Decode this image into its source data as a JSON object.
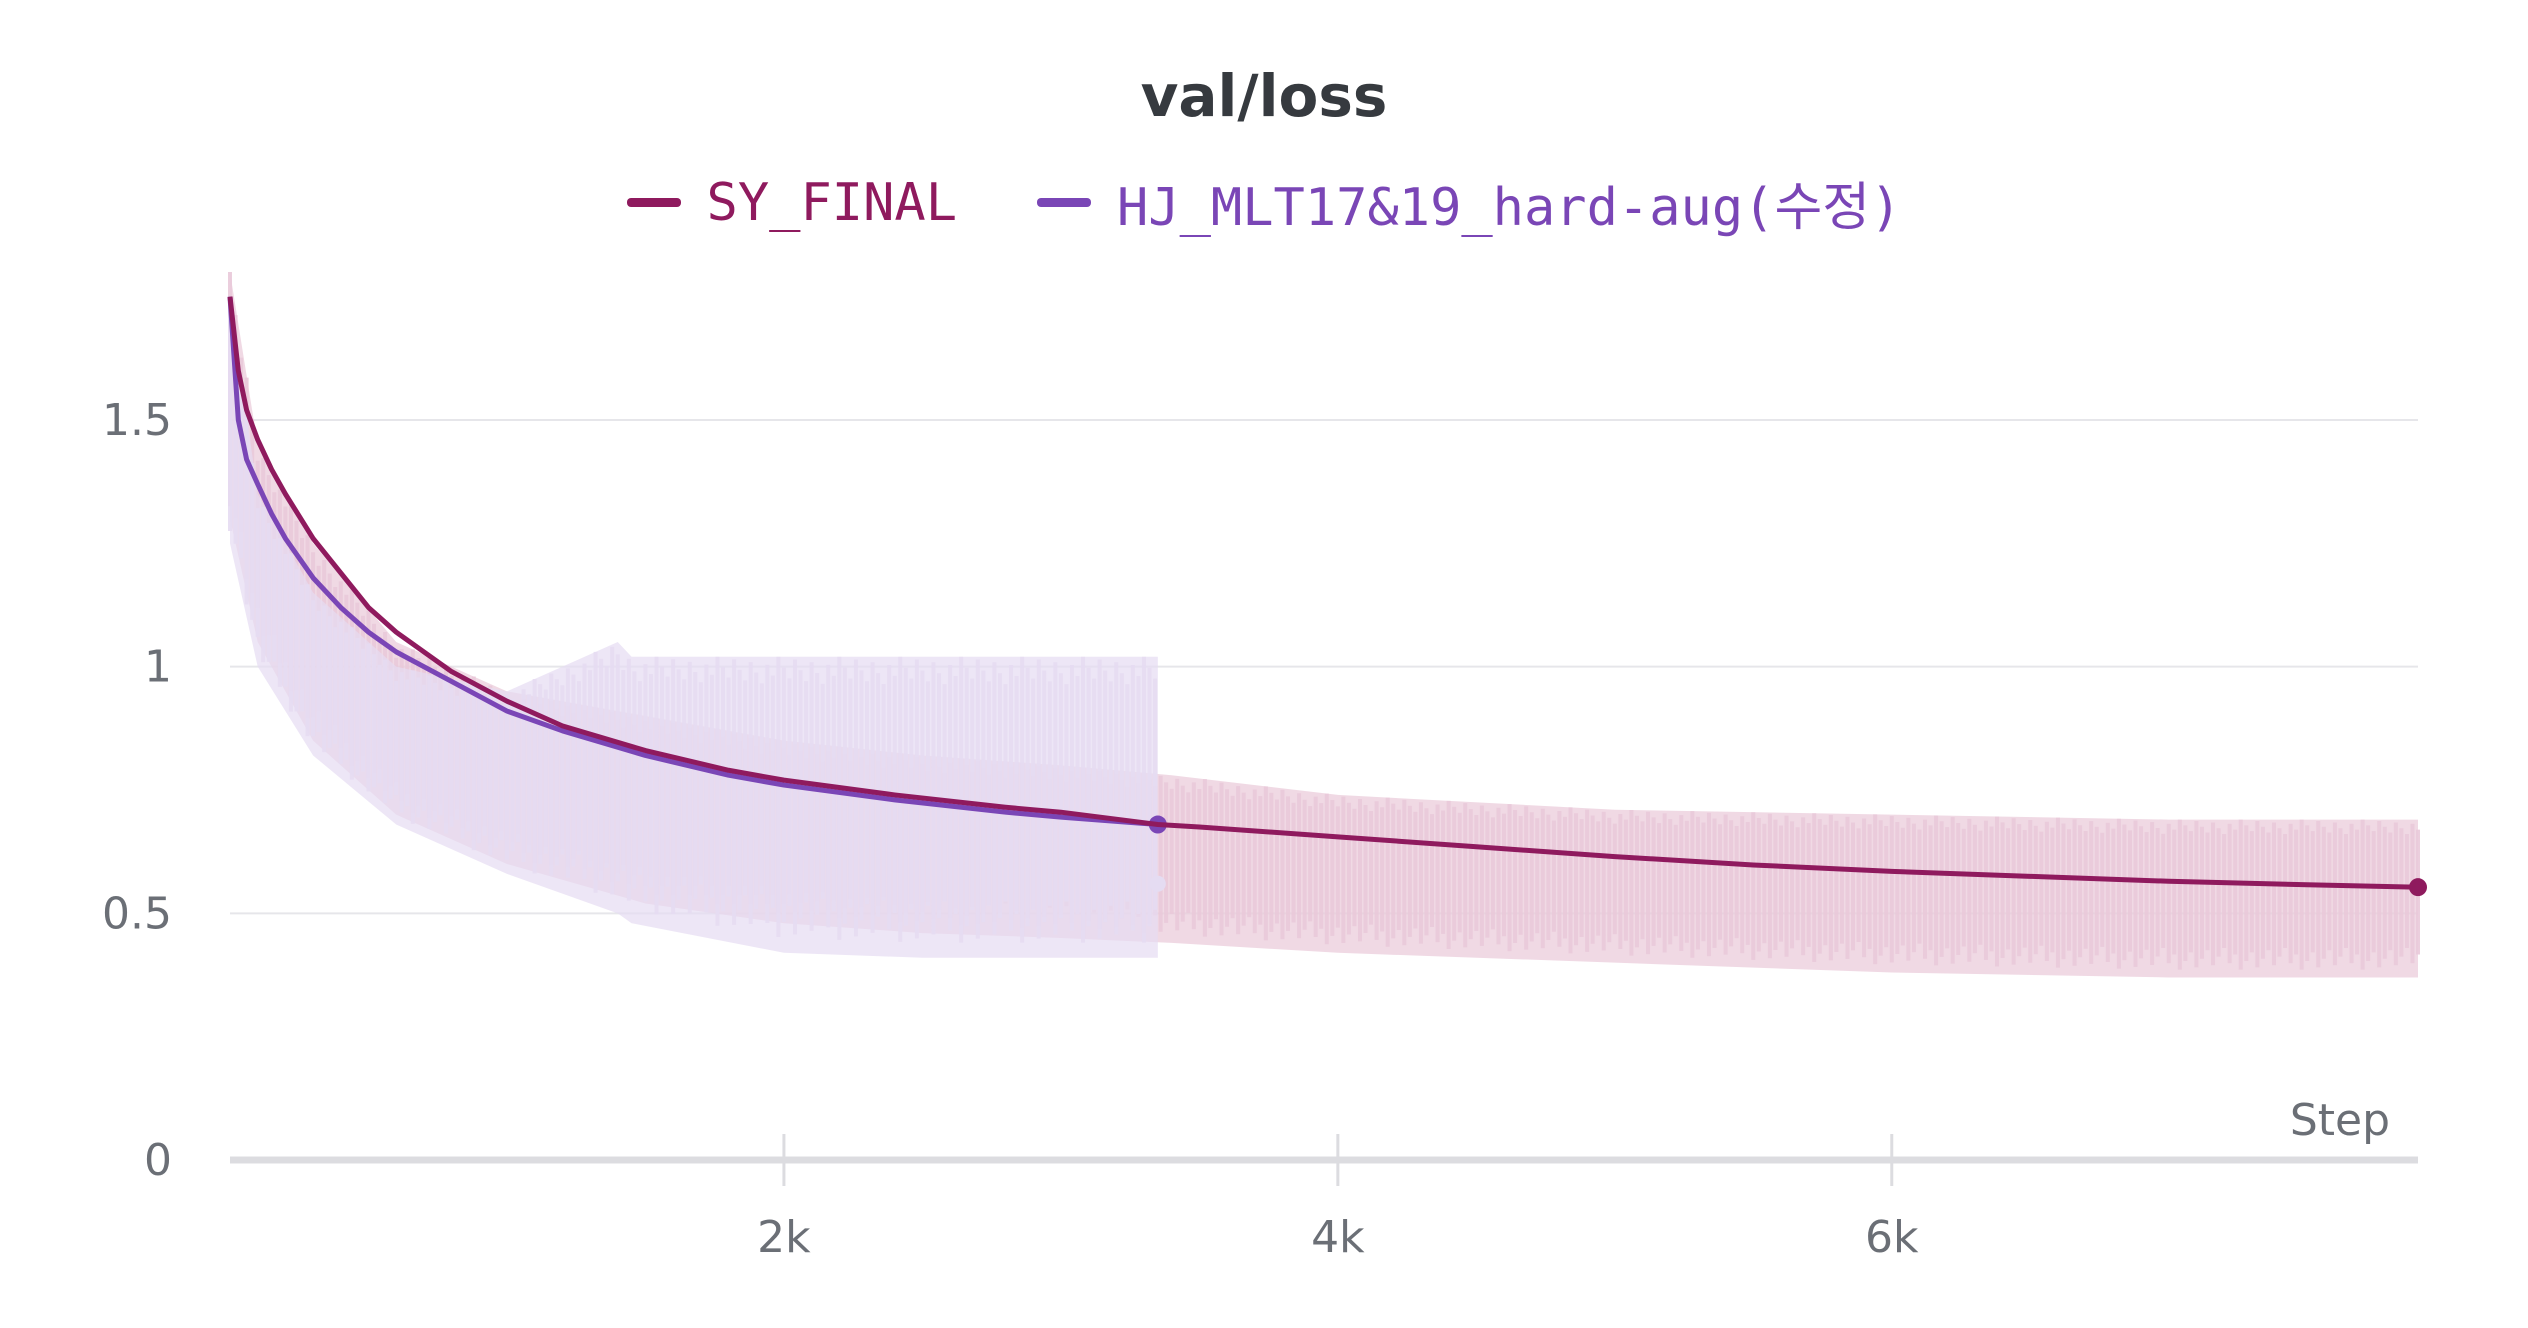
{
  "chart_data": {
    "type": "line",
    "title": "val/loss",
    "xlabel": "Step",
    "ylabel": "",
    "xlim": [
      0,
      7900
    ],
    "ylim": [
      0,
      1.5
    ],
    "xticks": [
      2000,
      4000,
      6000
    ],
    "xtick_labels": [
      "2k",
      "4k",
      "6k"
    ],
    "yticks": [
      0,
      0.5,
      1,
      1.5
    ],
    "ytick_labels": [
      "0",
      "0.5",
      "1",
      "1.5"
    ],
    "grid": "horizontal",
    "legend_position": "top",
    "series": [
      {
        "name": "SY_FINAL",
        "color": "#8f1a5e",
        "raw_color": "#e9c9d9",
        "raw_band": {
          "x": [
            0,
            100,
            300,
            600,
            1000,
            1500,
            2000,
            2500,
            3000,
            3400,
            4000,
            5000,
            6000,
            7000,
            7900
          ],
          "low": [
            1.3,
            1.05,
            0.85,
            0.7,
            0.6,
            0.52,
            0.48,
            0.46,
            0.45,
            0.44,
            0.42,
            0.4,
            0.38,
            0.37,
            0.37
          ],
          "high": [
            1.8,
            1.45,
            1.25,
            1.05,
            0.95,
            0.9,
            0.85,
            0.82,
            0.8,
            0.78,
            0.74,
            0.71,
            0.7,
            0.69,
            0.69
          ]
        },
        "x": [
          0,
          30,
          60,
          100,
          150,
          200,
          300,
          400,
          500,
          600,
          700,
          800,
          1000,
          1200,
          1500,
          1800,
          2000,
          2400,
          2800,
          3000,
          3350,
          3500,
          4000,
          4500,
          5000,
          5500,
          6000,
          6500,
          7000,
          7500,
          7900
        ],
        "y": [
          1.75,
          1.6,
          1.52,
          1.46,
          1.4,
          1.35,
          1.26,
          1.19,
          1.12,
          1.07,
          1.03,
          0.99,
          0.93,
          0.88,
          0.83,
          0.79,
          0.77,
          0.74,
          0.715,
          0.705,
          0.68,
          0.675,
          0.655,
          0.635,
          0.615,
          0.598,
          0.585,
          0.575,
          0.565,
          0.558,
          0.553
        ],
        "last_point": {
          "x": 7900,
          "y": 0.553
        }
      },
      {
        "name": "HJ_MLT17&19_hard-aug(수정)",
        "color": "#7a46b6",
        "raw_color": "#e5dcf2",
        "raw_band": {
          "x": [
            0,
            100,
            300,
            600,
            1000,
            1400,
            1450,
            2000,
            2500,
            3000,
            3350
          ],
          "low": [
            1.25,
            1.0,
            0.82,
            0.68,
            0.58,
            0.5,
            0.48,
            0.42,
            0.41,
            0.41,
            0.41
          ],
          "high": [
            1.75,
            1.35,
            1.15,
            1.0,
            0.95,
            1.05,
            1.02,
            1.02,
            1.02,
            1.02,
            1.02
          ]
        },
        "x": [
          0,
          30,
          60,
          100,
          150,
          200,
          300,
          400,
          500,
          600,
          700,
          800,
          1000,
          1200,
          1500,
          1800,
          2000,
          2400,
          2800,
          3000,
          3350
        ],
        "y": [
          1.75,
          1.5,
          1.42,
          1.37,
          1.31,
          1.26,
          1.18,
          1.12,
          1.07,
          1.03,
          1.0,
          0.97,
          0.91,
          0.87,
          0.82,
          0.78,
          0.76,
          0.73,
          0.705,
          0.695,
          0.68
        ],
        "last_point": {
          "x": 3350,
          "y": 0.68
        },
        "last_raw_point": {
          "x": 3350,
          "y": 0.56
        }
      }
    ]
  }
}
